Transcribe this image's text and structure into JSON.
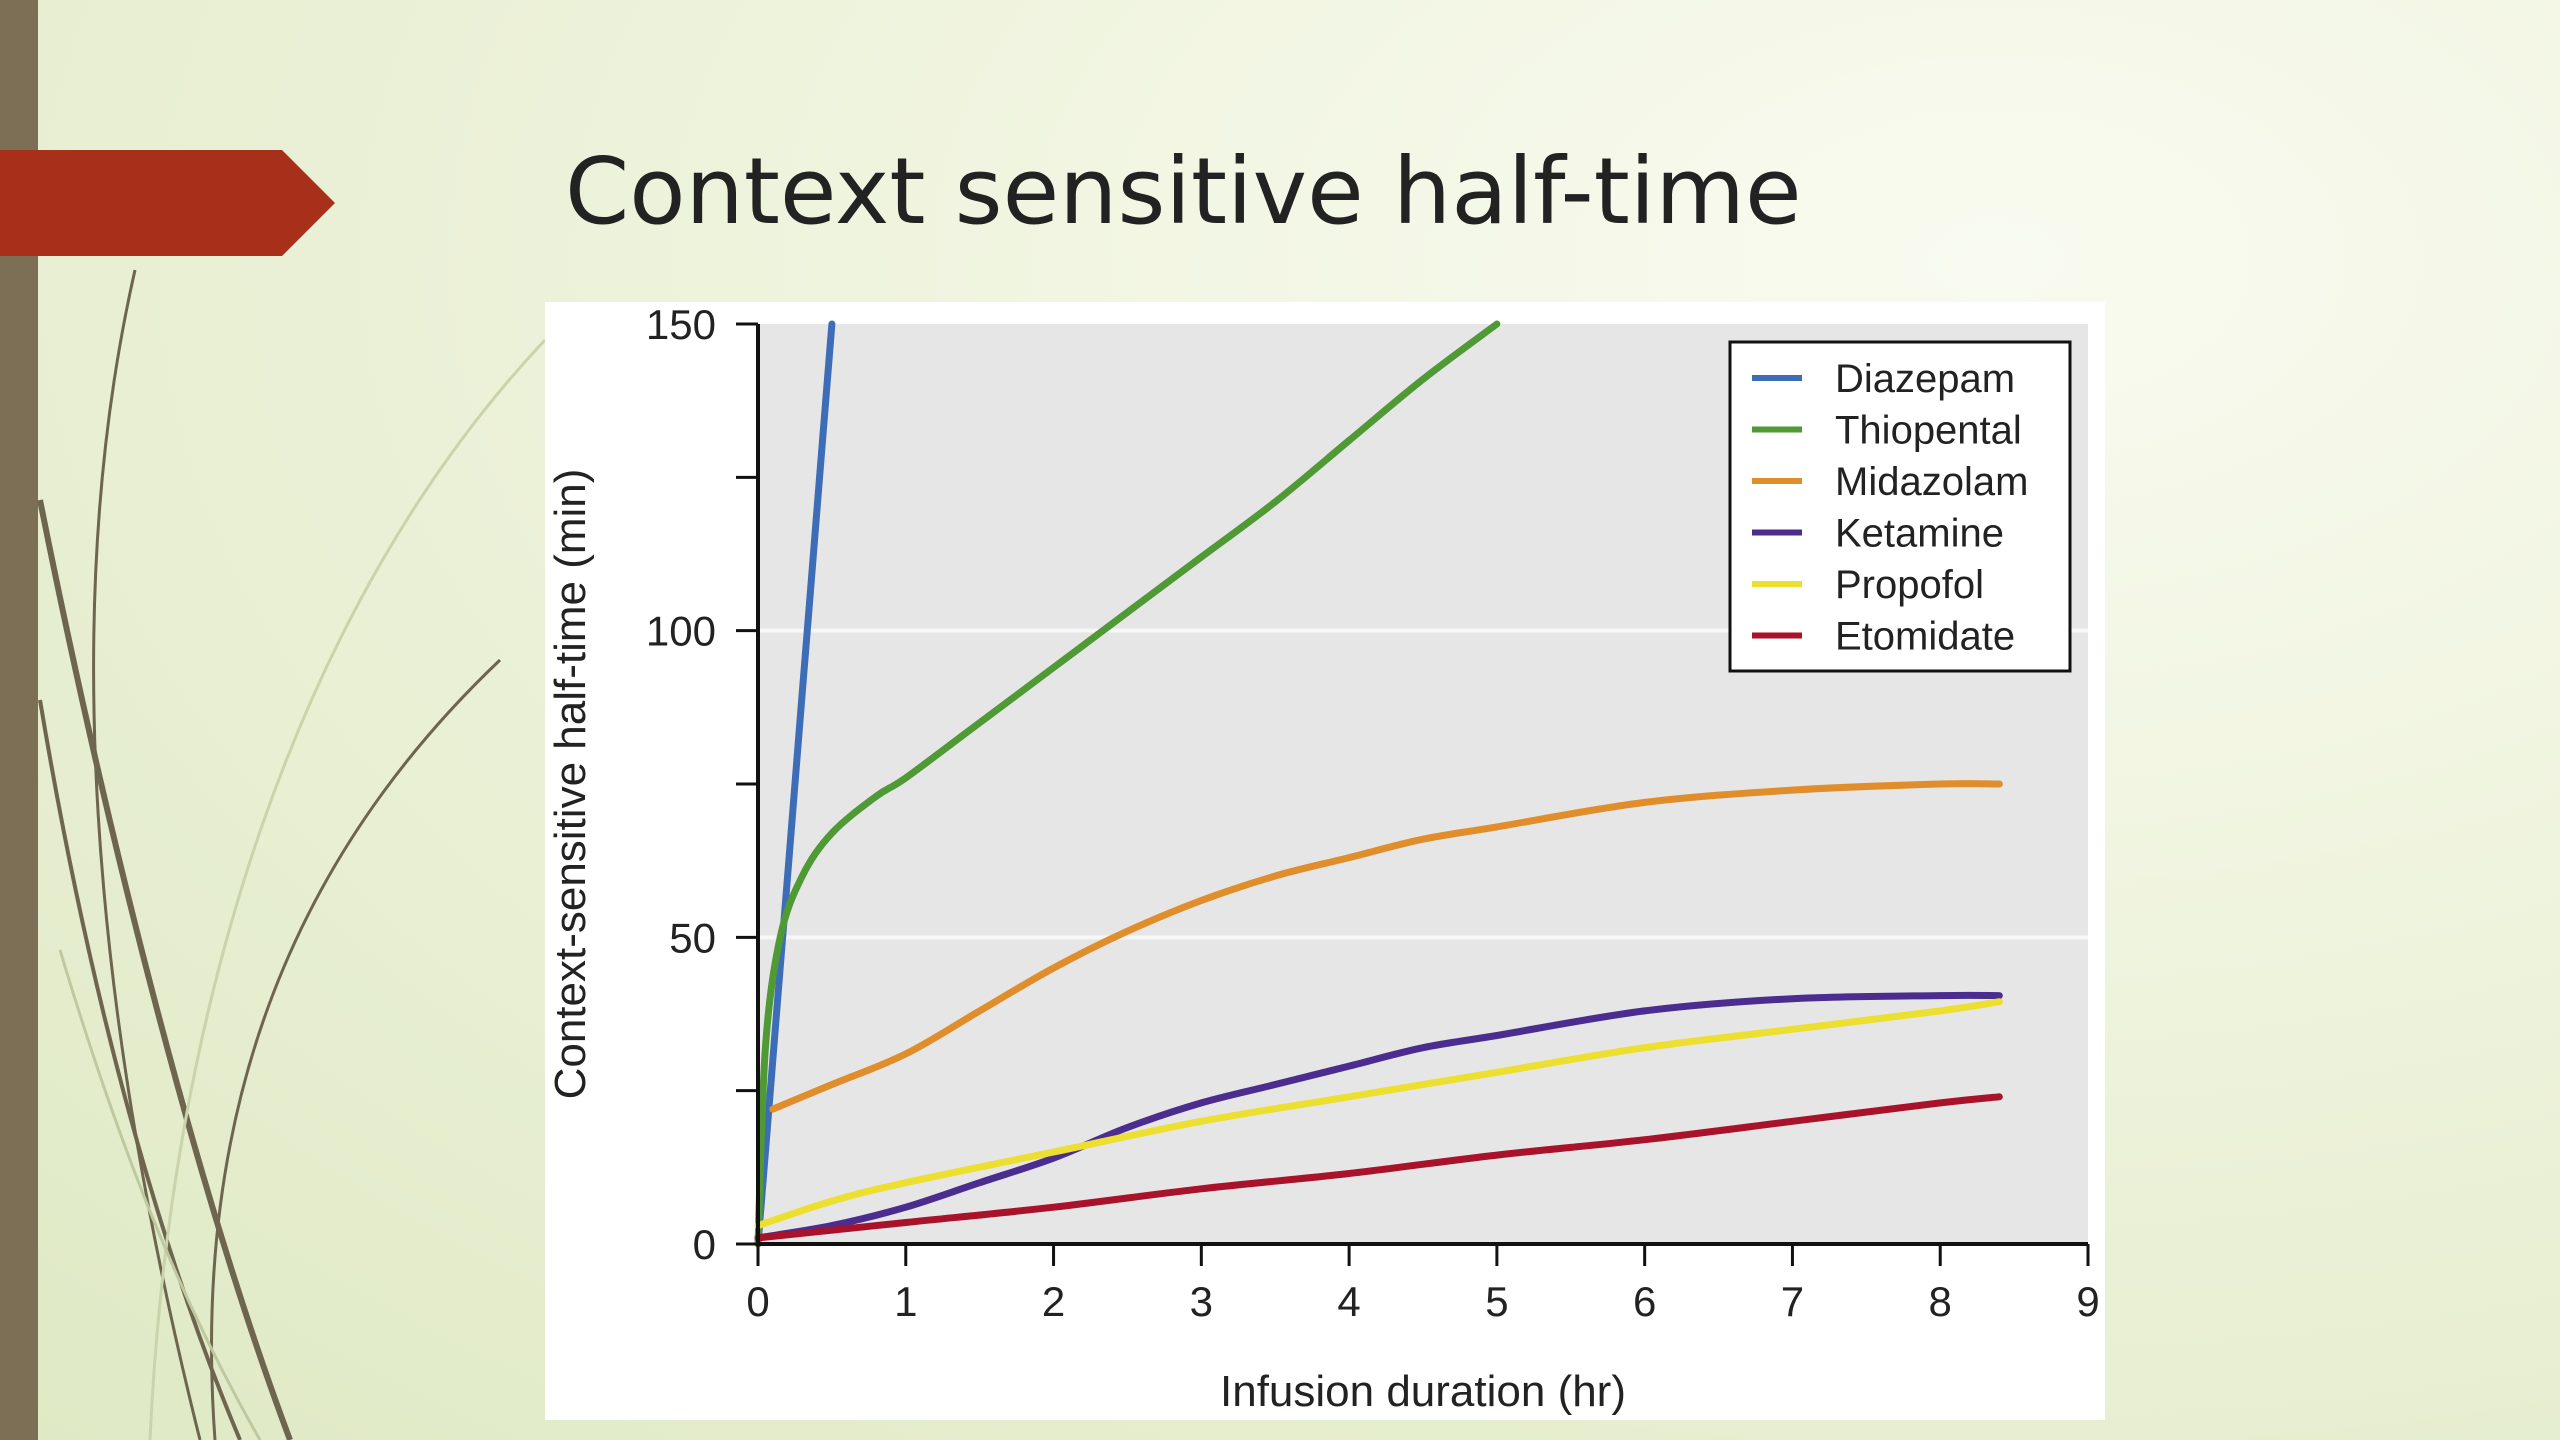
{
  "slide": {
    "title": "Context sensitive half-time",
    "accent_color": "#a8301a",
    "bar_color": "#7c6f55"
  },
  "chart_data": {
    "type": "line",
    "title": "",
    "xlabel": "Infusion duration (hr)",
    "ylabel": "Context-sensitive half-time (min)",
    "xlim": [
      0,
      9
    ],
    "ylim": [
      0,
      150
    ],
    "x_ticks": [
      0,
      1,
      2,
      3,
      4,
      5,
      6,
      7,
      8,
      9
    ],
    "y_ticks_labeled": [
      0,
      50,
      100,
      150
    ],
    "y_ticks_minor": [
      25,
      75,
      125
    ],
    "grid": true,
    "legend_position": "top-right",
    "plot_background": "#e6e6e6",
    "series": [
      {
        "name": "Diazepam",
        "color": "#3e6db8",
        "x": [
          0,
          0.1,
          0.2,
          0.3,
          0.4,
          0.5
        ],
        "y": [
          0,
          30,
          60,
          90,
          120,
          150
        ]
      },
      {
        "name": "Thiopental",
        "color": "#4f9a35",
        "x": [
          0,
          0.05,
          0.15,
          0.3,
          0.5,
          0.8,
          1,
          1.5,
          2,
          2.5,
          3,
          3.5,
          4,
          4.5,
          5
        ],
        "y": [
          0,
          32,
          50,
          60,
          67,
          73,
          76,
          85,
          94,
          103,
          112,
          121,
          131,
          141,
          150
        ]
      },
      {
        "name": "Midazolam",
        "color": "#e08e2b",
        "x": [
          0.1,
          0.5,
          1,
          1.5,
          2,
          2.5,
          3,
          3.5,
          4,
          4.5,
          5,
          6,
          7,
          8,
          8.4
        ],
        "y": [
          22,
          26,
          31,
          38,
          45,
          51,
          56,
          60,
          63,
          66,
          68,
          72,
          74,
          75,
          75
        ]
      },
      {
        "name": "Ketamine",
        "color": "#4b2c8f",
        "x": [
          0,
          0.5,
          1,
          1.5,
          2,
          2.5,
          3,
          3.5,
          4,
          4.5,
          5,
          6,
          7,
          8,
          8.4
        ],
        "y": [
          1,
          3,
          6,
          10,
          14,
          19,
          23,
          26,
          29,
          32,
          34,
          38,
          40,
          40.5,
          40.5
        ]
      },
      {
        "name": "Propofol",
        "color": "#ecdf30",
        "x": [
          0,
          0.5,
          1,
          2,
          3,
          4,
          5,
          6,
          7,
          8,
          8.4
        ],
        "y": [
          3,
          7,
          10,
          15,
          20,
          24,
          28,
          32,
          35,
          38,
          39.5
        ]
      },
      {
        "name": "Etomidate",
        "color": "#a8122b",
        "x": [
          0,
          1,
          2,
          3,
          4,
          5,
          6,
          7,
          8,
          8.4
        ],
        "y": [
          1,
          3.5,
          6,
          9,
          11.5,
          14.5,
          17,
          20,
          23,
          24
        ]
      }
    ]
  }
}
